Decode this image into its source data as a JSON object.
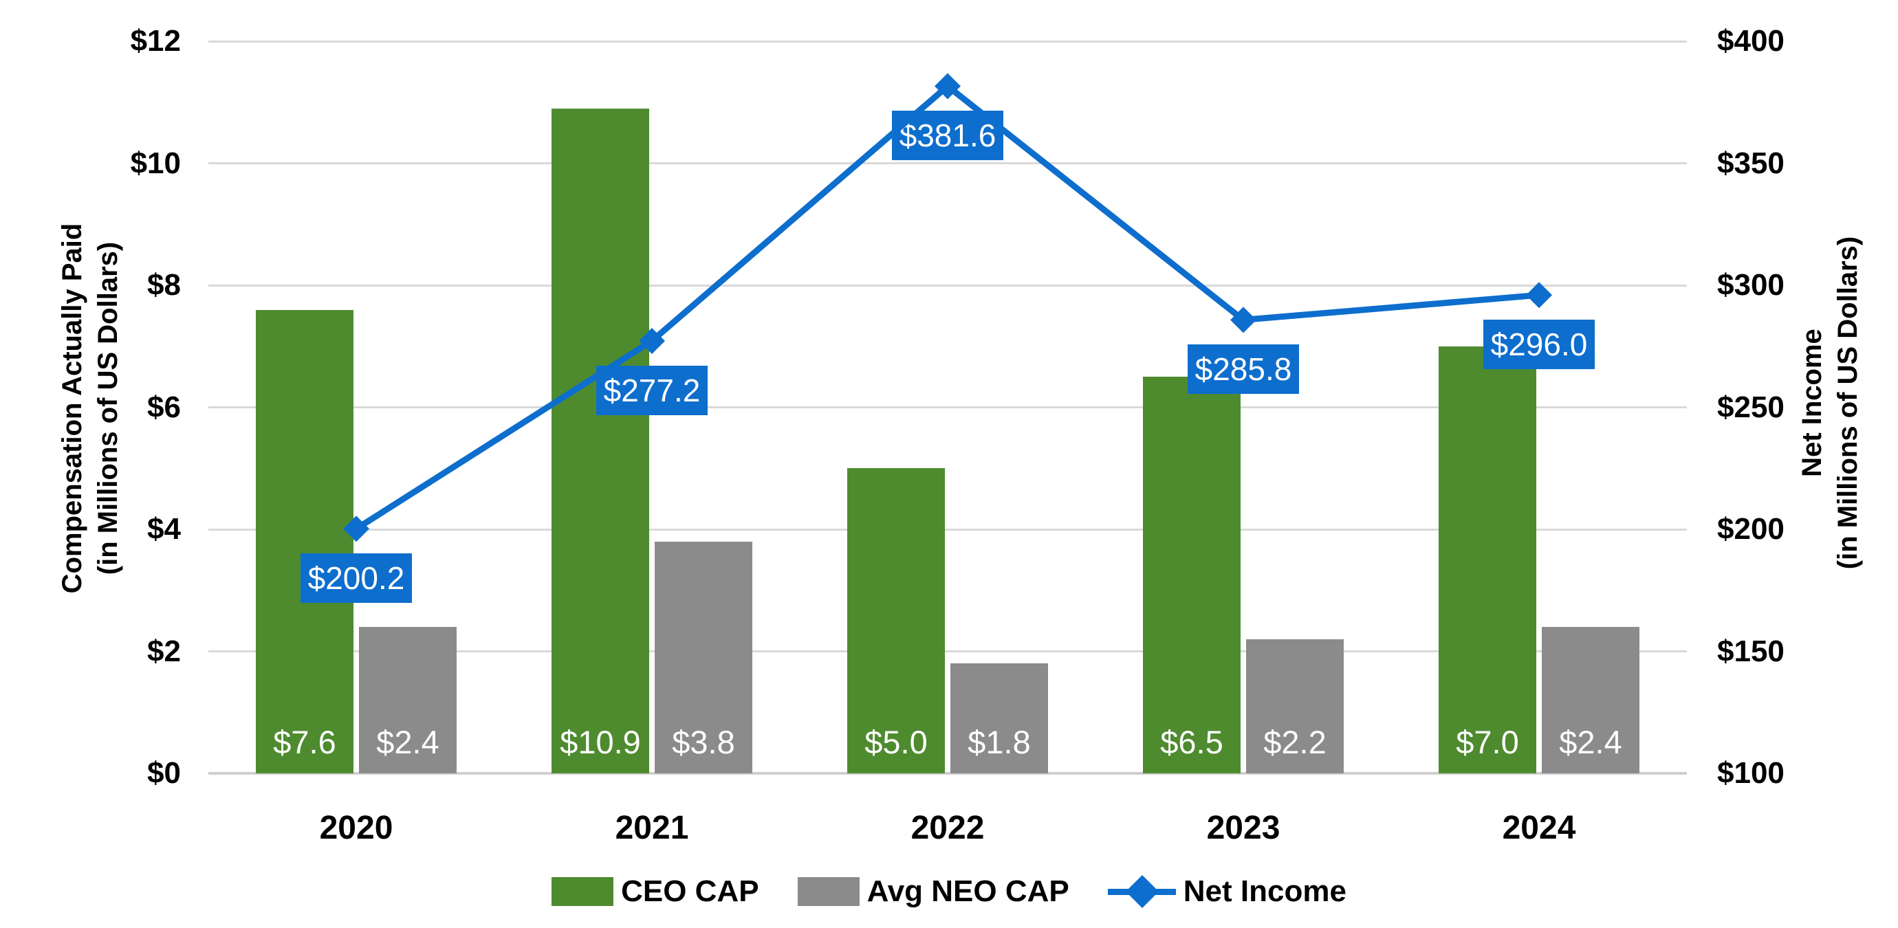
{
  "chart_data": {
    "type": "combo-grouped-bar-line",
    "categories": [
      "2020",
      "2021",
      "2022",
      "2023",
      "2024"
    ],
    "series": [
      {
        "name": "CEO CAP",
        "type": "bar",
        "axis": "left",
        "color": "#4e8b2f",
        "values": [
          7.6,
          10.9,
          5.0,
          6.5,
          7.0
        ],
        "labels": [
          "$7.6",
          "$10.9",
          "$5.0",
          "$6.5",
          "$7.0"
        ]
      },
      {
        "name": "Avg NEO CAP",
        "type": "bar",
        "axis": "left",
        "color": "#8b8b8b",
        "values": [
          2.4,
          3.8,
          1.8,
          2.2,
          2.4
        ],
        "labels": [
          "$2.4",
          "$3.8",
          "$1.8",
          "$2.2",
          "$2.4"
        ]
      },
      {
        "name": "Net Income",
        "type": "line",
        "axis": "right",
        "color": "#0d6ecd",
        "values": [
          200.2,
          277.2,
          381.6,
          285.8,
          296.0
        ],
        "labels": [
          "$200.2",
          "$277.2",
          "$381.6",
          "$285.8",
          "$296.0"
        ]
      }
    ],
    "left_axis": {
      "title_line1": "Compensation Actually Paid",
      "title_line2": "(in Millions of US Dollars)",
      "min": 0,
      "max": 12,
      "step": 2,
      "ticks": [
        "$0",
        "$2",
        "$4",
        "$6",
        "$8",
        "$10",
        "$12"
      ]
    },
    "right_axis": {
      "title_line1": "Net Income",
      "title_line2": "(in Millions of US Dollars)",
      "min": 100,
      "max": 400,
      "step": 50,
      "ticks": [
        "$100",
        "$150",
        "$200",
        "$250",
        "$300",
        "$350",
        "$400"
      ]
    },
    "legend": {
      "position": "bottom-center",
      "items": [
        "CEO CAP",
        "Avg NEO CAP",
        "Net Income"
      ]
    },
    "grid": true,
    "colors": {
      "ceo_cap_green": "#4e8b2f",
      "avg_neo_cap_gray": "#8b8b8b",
      "net_income_blue": "#0d6ecd",
      "gridline": "#d9d9d9",
      "data_label_text": "#ffffff",
      "axis_text": "#000000"
    }
  }
}
